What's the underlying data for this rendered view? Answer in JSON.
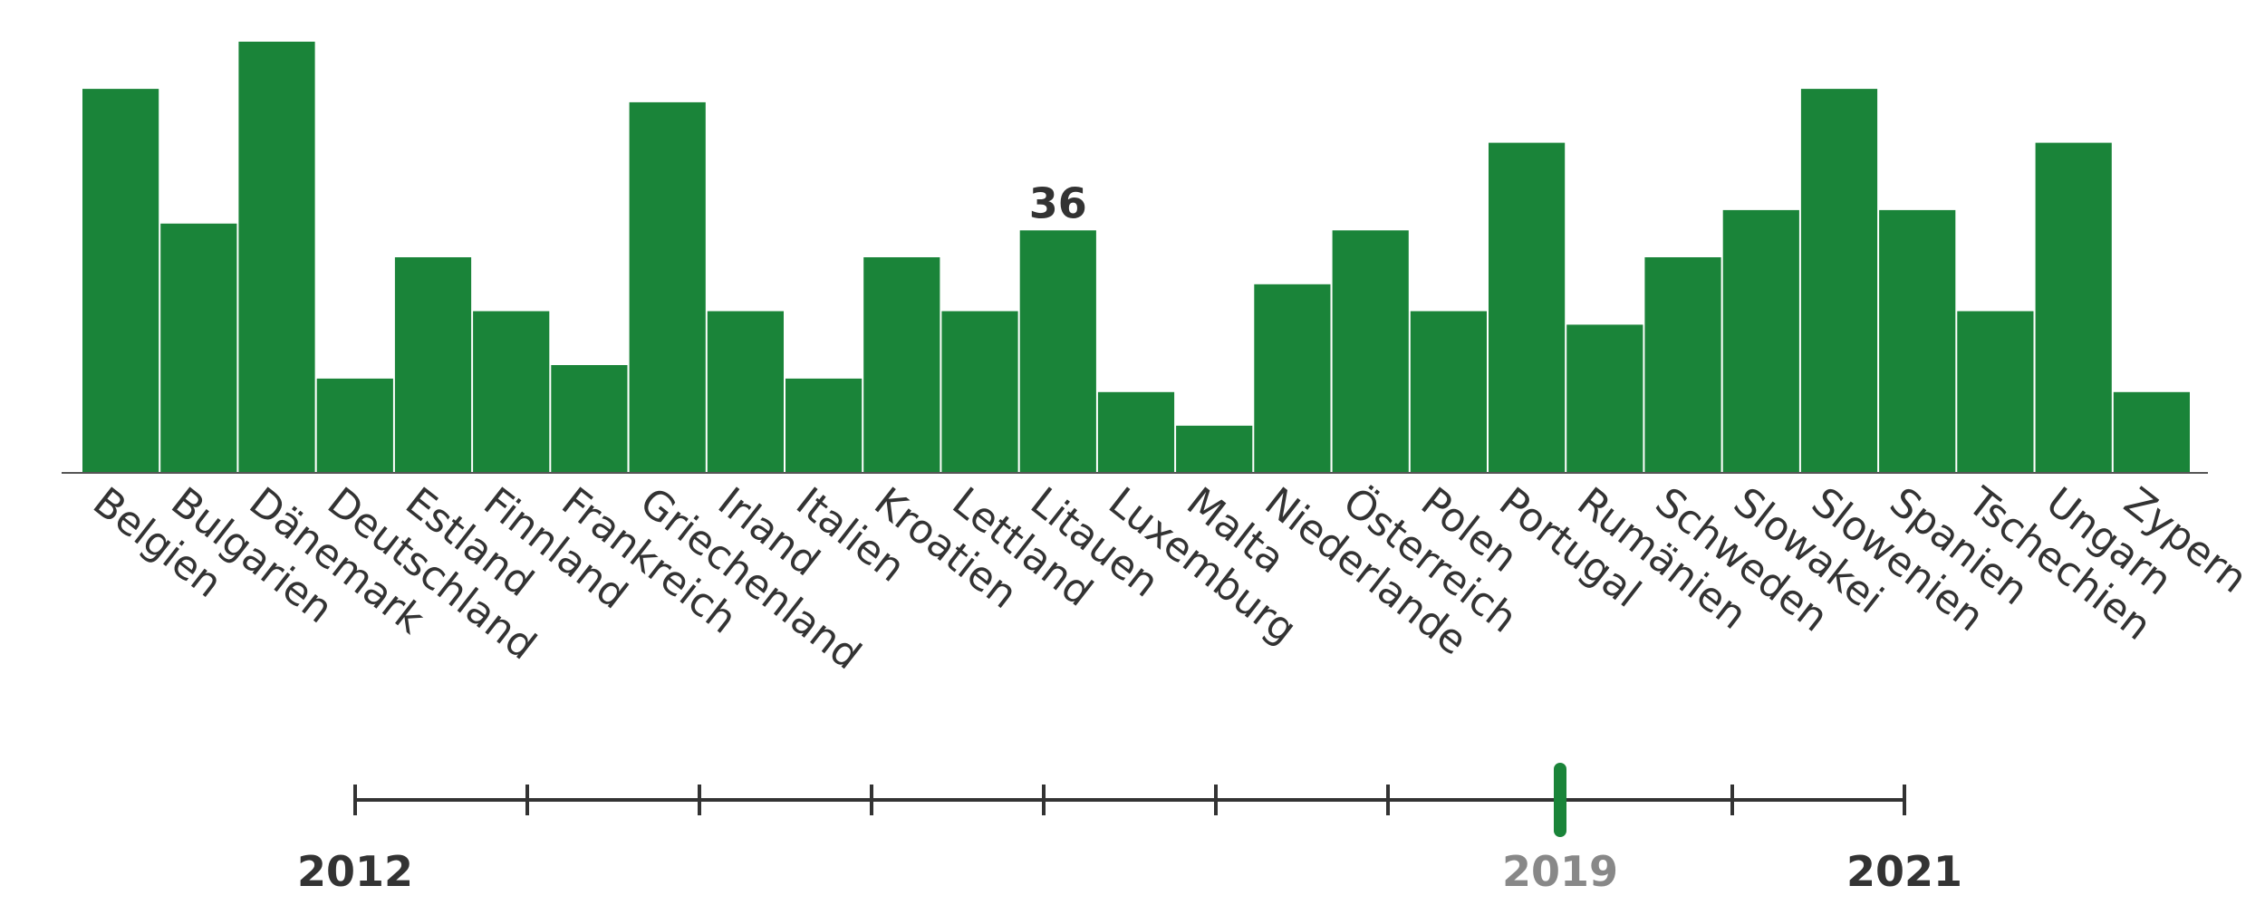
{
  "chart_data": {
    "type": "bar",
    "categories": [
      "Belgien",
      "Bulgarien",
      "Dänemark",
      "Deutschland",
      "Estland",
      "Finnland",
      "Frankreich",
      "Griechenland",
      "Irland",
      "Italien",
      "Kroatien",
      "Lettland",
      "Litauen",
      "Luxemburg",
      "Malta",
      "Niederlande",
      "Österreich",
      "Polen",
      "Portugal",
      "Rumänien",
      "Schweden",
      "Slowakei",
      "Slowenien",
      "Spanien",
      "Tschechien",
      "Ungarn",
      "Zypern"
    ],
    "values": [
      57,
      37,
      64,
      14,
      32,
      24,
      16,
      55,
      24,
      14,
      32,
      24,
      36,
      12,
      7,
      28,
      36,
      24,
      49,
      22,
      32,
      39,
      57,
      39,
      24,
      49,
      12
    ],
    "ylim": [
      0,
      64
    ],
    "bar_color": "#1a8439",
    "annotation": {
      "category": "Litauen",
      "text": "36"
    },
    "grid": false
  },
  "timeline": {
    "start_label": "2012",
    "selected_label": "2019",
    "end_label": "2021",
    "ticks": [
      2012,
      2013,
      2014,
      2015,
      2016,
      2017,
      2018,
      2019,
      2020,
      2021
    ],
    "selected": 2019,
    "axis_color": "#333333",
    "selected_color": "#1a8439",
    "selected_text_color": "#888888"
  }
}
